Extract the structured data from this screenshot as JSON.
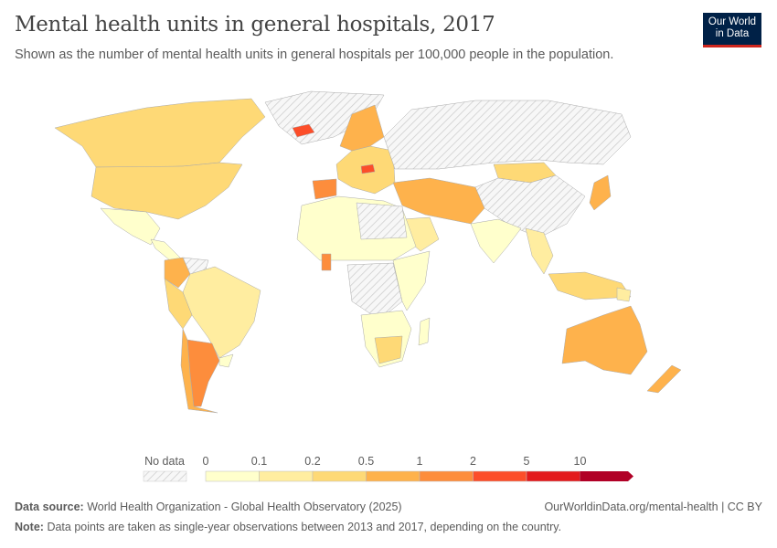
{
  "header": {
    "title": "Mental health units in general hospitals, 2017",
    "subtitle": "Shown as the number of mental health units in general hospitals per 100,000 people in the population.",
    "logo": "Our World in Data"
  },
  "legend": {
    "no_data_label": "No data",
    "ticks": [
      "0",
      "0.1",
      "0.2",
      "0.5",
      "1",
      "2",
      "5",
      "10"
    ],
    "colors": [
      "#ffffcc",
      "#ffeda0",
      "#fed976",
      "#feb24c",
      "#fd8d3c",
      "#fc4e2a",
      "#e31a1c",
      "#b10026"
    ]
  },
  "footer": {
    "source_label": "Data source:",
    "source": "World Health Organization - Global Health Observatory (2025)",
    "url": "OurWorldinData.org/mental-health | CC BY",
    "note_label": "Note:",
    "note": "Data points are taken as single-year observations between 2013 and 2017, depending on the country."
  }
}
